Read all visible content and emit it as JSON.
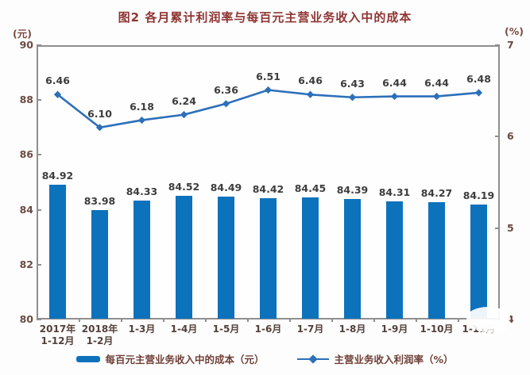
{
  "title": "图2 各月累计利润率与每百元主营业务收入中的成本",
  "axes": {
    "left_unit": "(元)",
    "right_unit": "(%)"
  },
  "legend": [
    {
      "label": "每百元主营业务收入中的成本（元）",
      "swatch": "bar"
    },
    {
      "label": "主营业务收入利润率（%）",
      "swatch": "line-diamond"
    }
  ],
  "colors": {
    "bar": "#0d72bc",
    "line": "#2c6fba",
    "title_text": "#8e3532",
    "axis_text": "#6b4a42",
    "value_label_text": "#3d3d3d",
    "plot_border": "#8f8f8f"
  },
  "chart_data": {
    "type": "combo-bar-line",
    "title": "图2 各月累计利润率与每百元主营业务收入中的成本",
    "categories": [
      [
        "2017年",
        "1-12月"
      ],
      [
        "2018年",
        "1-2月"
      ],
      [
        "1-3月"
      ],
      [
        "1-4月"
      ],
      [
        "1-5月"
      ],
      [
        "1-6月"
      ],
      [
        "1-7月"
      ],
      [
        "1-8月"
      ],
      [
        "1-9月"
      ],
      [
        "1-10月"
      ],
      [
        "1-11月"
      ]
    ],
    "series": [
      {
        "name": "每百元主营业务收入中的成本（元）",
        "type": "bar",
        "axis": "left",
        "color": "#0d72bc",
        "values": [
          84.92,
          83.98,
          84.33,
          84.52,
          84.49,
          84.42,
          84.45,
          84.39,
          84.31,
          84.27,
          84.19
        ]
      },
      {
        "name": "主营业务收入利润率（%）",
        "type": "line",
        "axis": "right",
        "color": "#2c6fba",
        "values": [
          6.46,
          6.1,
          6.18,
          6.24,
          6.36,
          6.51,
          6.46,
          6.43,
          6.44,
          6.44,
          6.48
        ]
      }
    ],
    "left_axis": {
      "unit": "元",
      "min": 80,
      "max": 90,
      "ticks": [
        90,
        88,
        86,
        84,
        82,
        80
      ]
    },
    "right_axis": {
      "unit": "%",
      "min": 4,
      "max": 7,
      "ticks": [
        7,
        6,
        5,
        4
      ]
    },
    "grid": false,
    "legend_position": "bottom"
  }
}
